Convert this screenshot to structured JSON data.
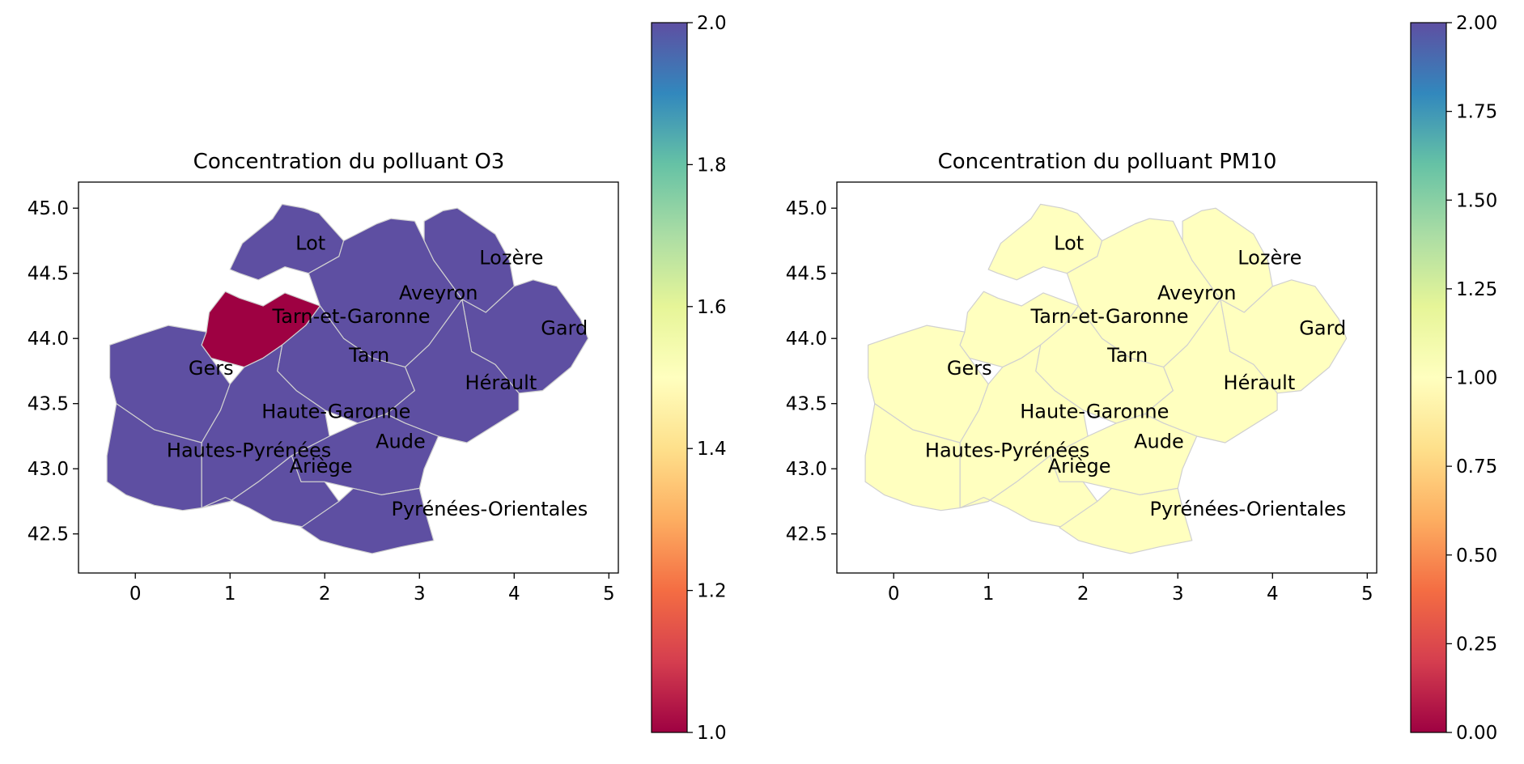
{
  "panels": [
    {
      "id": "o3",
      "title": "Concentration du polluant O3",
      "colorbar": {
        "min": 1.0,
        "max": 2.0,
        "ticks": [
          "1.0",
          "1.2",
          "1.4",
          "1.6",
          "1.8",
          "2.0"
        ],
        "tick_values": [
          1.0,
          1.2,
          1.4,
          1.6,
          1.8,
          2.0
        ]
      },
      "values": {
        "Lot": 2,
        "Lozère": 2,
        "Aveyron": 2,
        "Tarn-et-Garonne": 1,
        "Gard": 2,
        "Tarn": 2,
        "Gers": 2,
        "Hérault": 2,
        "Haute-Garonne": 2,
        "Aude": 2,
        "Hautes-Pyrénées": 2,
        "Ariège": 2,
        "Pyrénées-Orientales": 2
      }
    },
    {
      "id": "pm10",
      "title": "Concentration du polluant PM10",
      "colorbar": {
        "min": 0.0,
        "max": 2.0,
        "ticks": [
          "0.00",
          "0.25",
          "0.50",
          "0.75",
          "1.00",
          "1.25",
          "1.50",
          "1.75",
          "2.00"
        ],
        "tick_values": [
          0,
          0.25,
          0.5,
          0.75,
          1.0,
          1.25,
          1.5,
          1.75,
          2.0
        ]
      },
      "values": {
        "Lot": 1,
        "Lozère": 1,
        "Aveyron": 1,
        "Tarn-et-Garonne": 1,
        "Gard": 1,
        "Tarn": 1,
        "Gers": 1,
        "Hérault": 1,
        "Haute-Garonne": 1,
        "Aude": 1,
        "Hautes-Pyrénées": 1,
        "Ariège": 1,
        "Pyrénées-Orientales": 1
      }
    }
  ],
  "x_ticks": [
    "0",
    "1",
    "2",
    "3",
    "4",
    "5"
  ],
  "x_tick_values": [
    0,
    1,
    2,
    3,
    4,
    5
  ],
  "y_ticks": [
    "42.5",
    "43.0",
    "43.5",
    "44.0",
    "44.5",
    "45.0"
  ],
  "y_tick_values": [
    42.5,
    43.0,
    43.5,
    44.0,
    44.5,
    45.0
  ],
  "xlim": [
    -0.6,
    5.1
  ],
  "ylim": [
    42.2,
    45.2
  ],
  "colormap": "Spectral",
  "colormap_stops": [
    "#9e0142",
    "#d53e4f",
    "#f46d43",
    "#fdae61",
    "#fee08b",
    "#ffffbf",
    "#e6f598",
    "#abdda4",
    "#66c2a5",
    "#3288bd",
    "#5e4fa2"
  ],
  "border_color": "#d0d0d0",
  "departments": [
    {
      "name": "Lot",
      "label_lon": 1.85,
      "label_lat": 44.73
    },
    {
      "name": "Lozère",
      "label_lon": 3.97,
      "label_lat": 44.62
    },
    {
      "name": "Aveyron",
      "label_lon": 3.2,
      "label_lat": 44.35
    },
    {
      "name": "Tarn-et-Garonne",
      "label_lon": 2.28,
      "label_lat": 44.17
    },
    {
      "name": "Gard",
      "label_lon": 4.53,
      "label_lat": 44.08
    },
    {
      "name": "Tarn",
      "label_lon": 2.47,
      "label_lat": 43.87
    },
    {
      "name": "Gers",
      "label_lon": 0.8,
      "label_lat": 43.77
    },
    {
      "name": "Hérault",
      "label_lon": 3.86,
      "label_lat": 43.66
    },
    {
      "name": "Haute-Garonne",
      "label_lon": 2.12,
      "label_lat": 43.44
    },
    {
      "name": "Aude",
      "label_lon": 2.8,
      "label_lat": 43.21
    },
    {
      "name": "Hautes-Pyrénées",
      "label_lon": 1.2,
      "label_lat": 43.14
    },
    {
      "name": "Ariège",
      "label_lon": 1.96,
      "label_lat": 43.02
    },
    {
      "name": "Pyrénées-Orientales",
      "label_lon": 3.74,
      "label_lat": 42.69
    }
  ]
}
